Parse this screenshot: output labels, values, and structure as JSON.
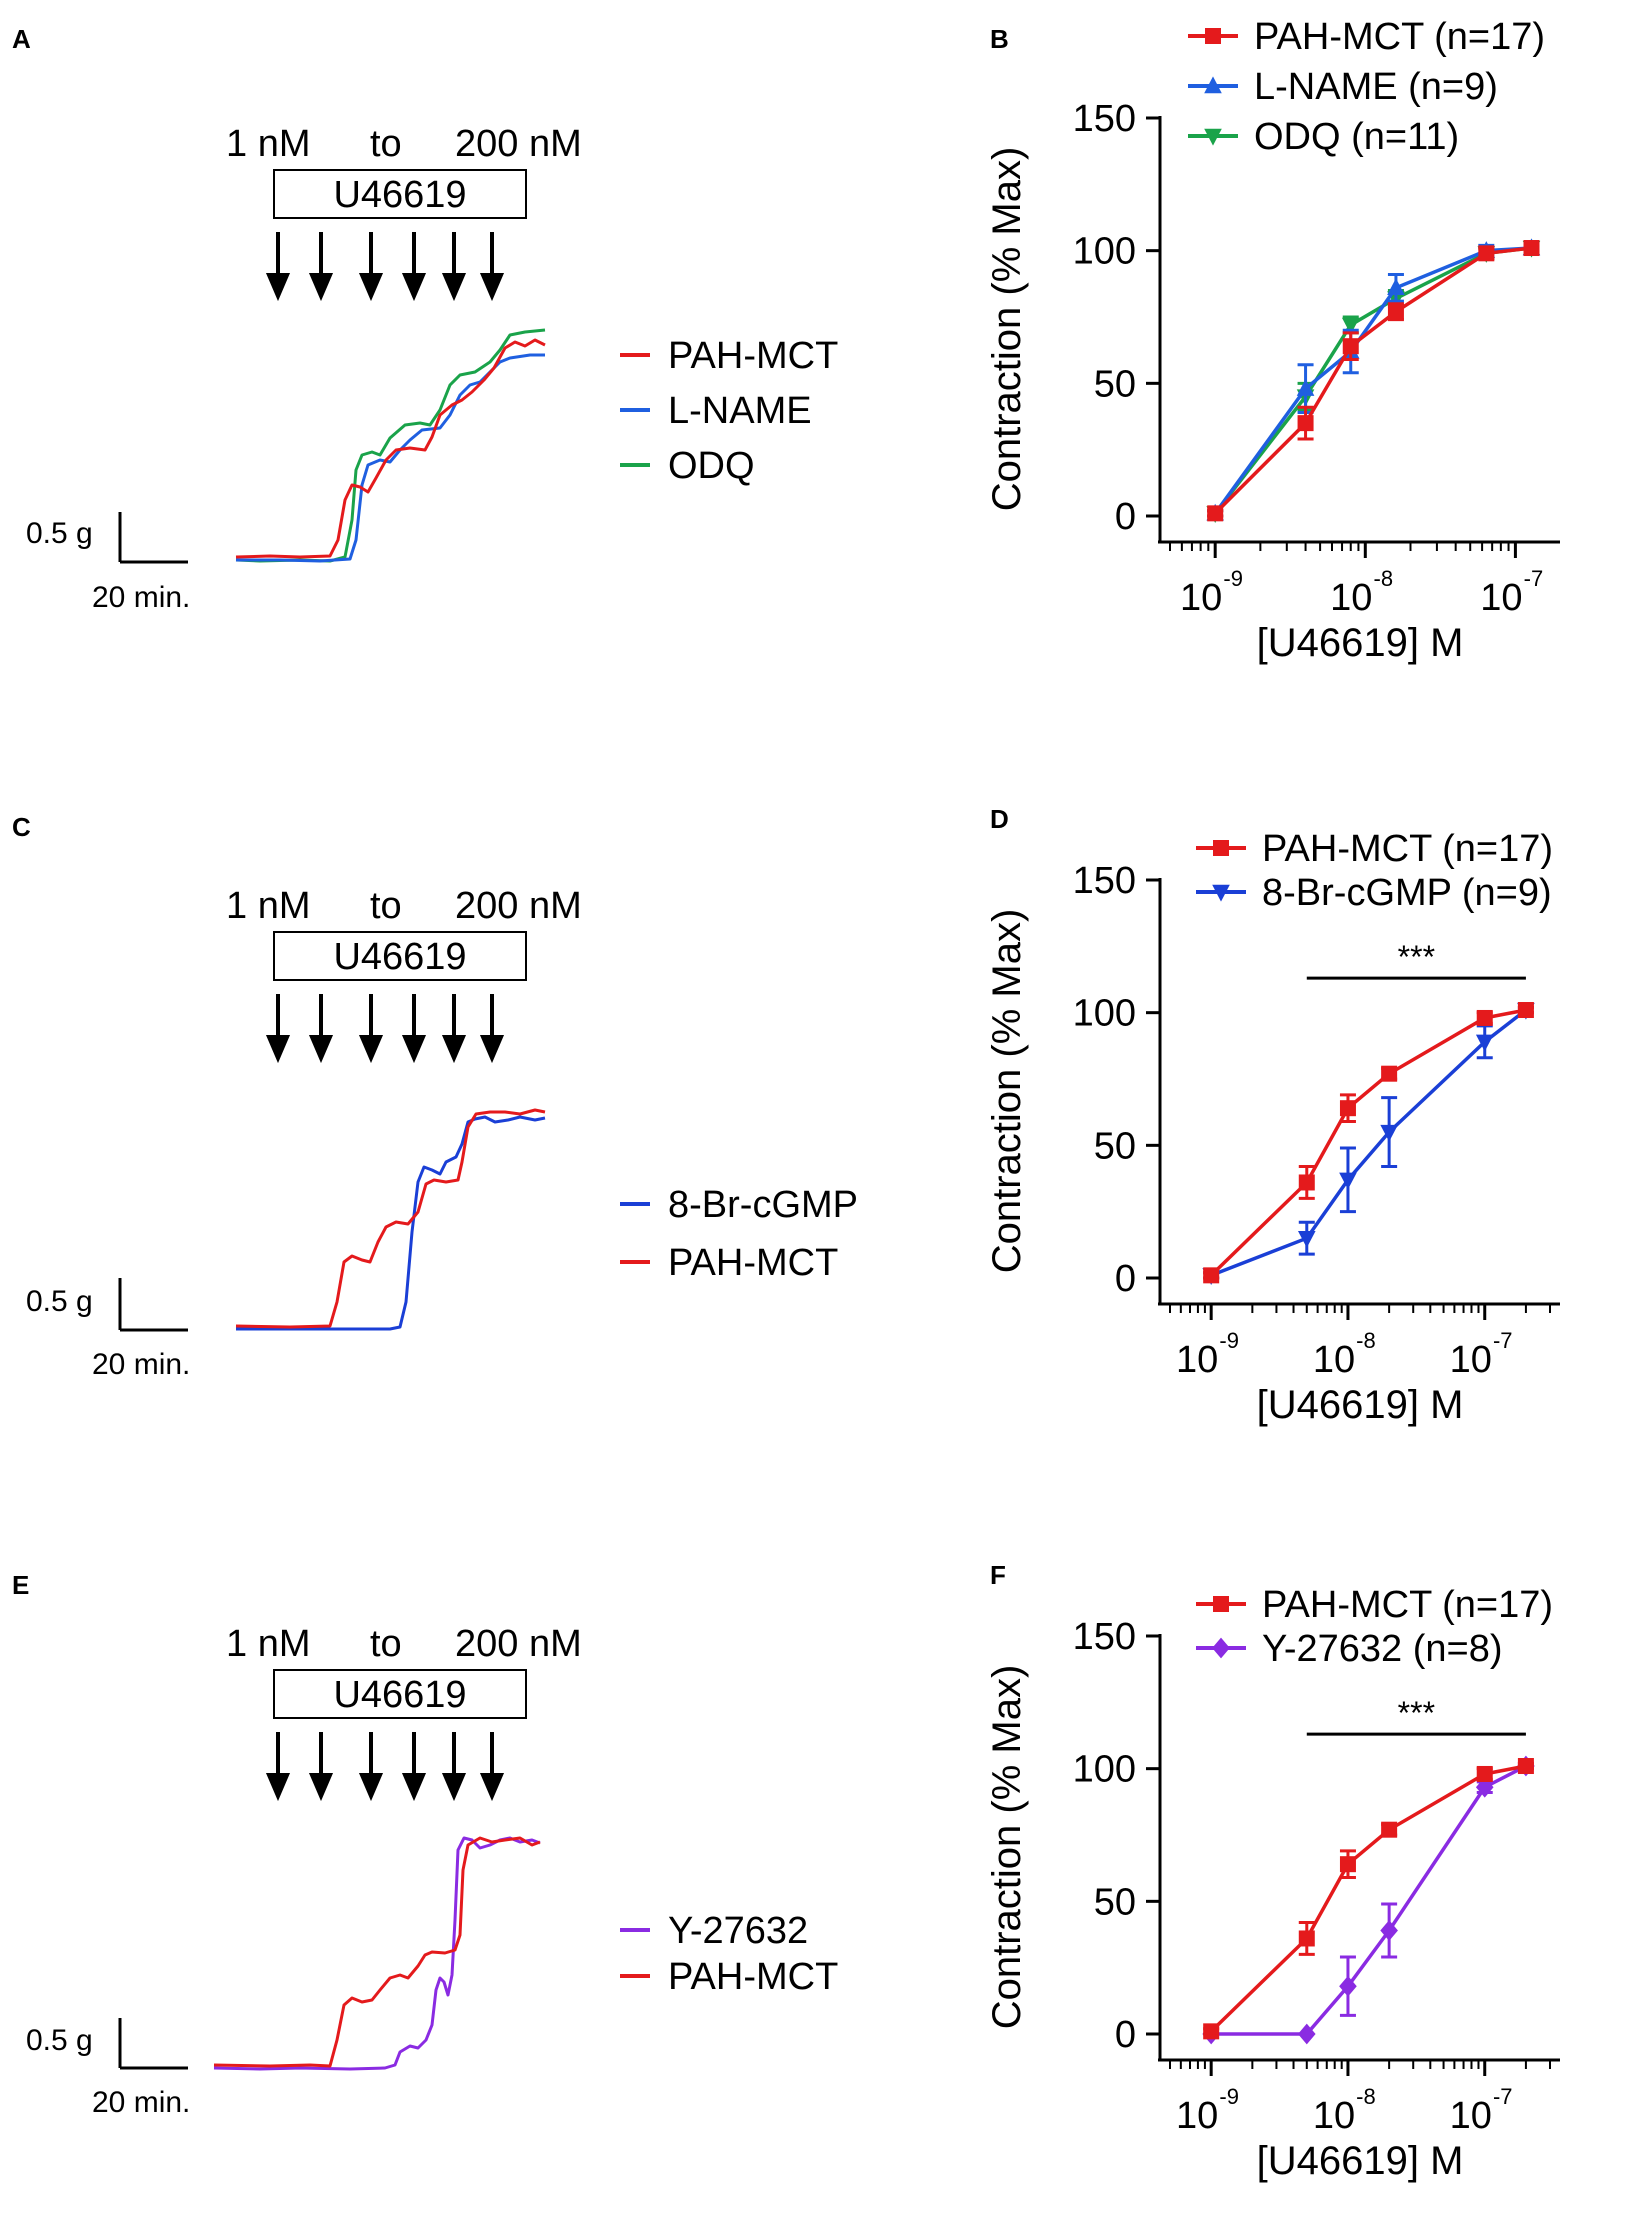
{
  "colors": {
    "pah_mct": "#e41a1c",
    "l_name": "#1f5fe0",
    "odq": "#1aa34a",
    "br_cgmp": "#1a3fd6",
    "y27632": "#8a2be2",
    "black": "#000000"
  },
  "trace_panels": [
    {
      "label": "A",
      "dose_start": "1 nM",
      "dose_to": "to",
      "dose_end": "200 nM",
      "drug": "U46619",
      "scale_y": "0.5 g",
      "scale_x": "20 min.",
      "legend": [
        {
          "name": "PAH-MCT",
          "color": "#e41a1c"
        },
        {
          "name": "L-NAME",
          "color": "#1f5fe0"
        },
        {
          "name": "ODQ",
          "color": "#1aa34a"
        }
      ]
    },
    {
      "label": "C",
      "dose_start": "1 nM",
      "dose_to": "to",
      "dose_end": "200 nM",
      "drug": "U46619",
      "scale_y": "0.5 g",
      "scale_x": "20 min.",
      "legend": [
        {
          "name": "8-Br-cGMP",
          "color": "#1a3fd6"
        },
        {
          "name": "PAH-MCT",
          "color": "#e41a1c"
        }
      ]
    },
    {
      "label": "E",
      "dose_start": "1 nM",
      "dose_to": "to",
      "dose_end": "200 nM",
      "drug": "U46619",
      "scale_y": "0.5 g",
      "scale_x": "20 min.",
      "legend": [
        {
          "name": "Y-27632",
          "color": "#8a2be2"
        },
        {
          "name": "PAH-MCT",
          "color": "#e41a1c"
        }
      ]
    }
  ],
  "chart_data": [
    {
      "label": "B",
      "type": "line",
      "xscale": "log",
      "xlabel": "[U46619] M",
      "ylabel": "Contraction (% Max)",
      "ylim": [
        0,
        150
      ],
      "yticks": [
        0,
        50,
        100,
        150
      ],
      "xlim": [
        5e-10,
        1.7e-07
      ],
      "xtick_labels": [
        {
          "base": "10",
          "exp": "-9",
          "value": 1e-09
        },
        {
          "base": "10",
          "exp": "-8",
          "value": 1e-08
        },
        {
          "base": "10",
          "exp": "-7",
          "value": 1e-07
        }
      ],
      "significance": "",
      "series": [
        {
          "name": "PAH-MCT (n=17)",
          "color": "#e41a1c",
          "marker": "square",
          "x": [
            1e-09,
            4e-09,
            8e-09,
            1.6e-08,
            6.4e-08,
            1.28e-07
          ],
          "y": [
            1,
            35,
            64,
            77,
            99,
            101
          ],
          "err": [
            1,
            6,
            5,
            3,
            2,
            1
          ]
        },
        {
          "name": "L-NAME (n=9)",
          "color": "#1f5fe0",
          "marker": "triangle-up",
          "x": [
            1e-09,
            4e-09,
            8e-09,
            1.6e-08,
            6.4e-08,
            1.28e-07
          ],
          "y": [
            1,
            48,
            62,
            86,
            100,
            101
          ],
          "err": [
            1,
            9,
            8,
            5,
            2,
            1
          ]
        },
        {
          "name": "ODQ (n=11)",
          "color": "#1aa34a",
          "marker": "triangle-down",
          "x": [
            1e-09,
            4e-09,
            8e-09,
            1.6e-08,
            6.4e-08,
            1.28e-07
          ],
          "y": [
            1,
            45,
            72,
            82,
            99,
            101
          ],
          "err": [
            1,
            5,
            3,
            3,
            2,
            1
          ]
        }
      ]
    },
    {
      "label": "D",
      "type": "line",
      "xscale": "log",
      "xlabel": "[U46619] M",
      "ylabel": "Contraction (% Max)",
      "ylim": [
        0,
        150
      ],
      "yticks": [
        0,
        50,
        100,
        150
      ],
      "xlim": [
        5e-10,
        3e-07
      ],
      "xtick_labels": [
        {
          "base": "10",
          "exp": "-9",
          "value": 1e-09
        },
        {
          "base": "10",
          "exp": "-8",
          "value": 1e-08
        },
        {
          "base": "10",
          "exp": "-7",
          "value": 1e-07
        }
      ],
      "significance": "***",
      "significance_range": [
        5e-09,
        2e-07
      ],
      "significance_y": 113,
      "series": [
        {
          "name": "PAH-MCT (n=17)",
          "color": "#e41a1c",
          "marker": "square",
          "x": [
            1e-09,
            5e-09,
            1e-08,
            2e-08,
            1e-07,
            2e-07
          ],
          "y": [
            1,
            36,
            64,
            77,
            98,
            101
          ],
          "err": [
            1,
            6,
            5,
            2,
            2,
            1
          ]
        },
        {
          "name": "8-Br-cGMP (n=9)",
          "color": "#1a3fd6",
          "marker": "triangle-down",
          "x": [
            1e-09,
            5e-09,
            1e-08,
            2e-08,
            1e-07,
            2e-07
          ],
          "y": [
            1,
            15,
            37,
            55,
            89,
            101
          ],
          "err": [
            1,
            6,
            12,
            13,
            6,
            1
          ]
        }
      ]
    },
    {
      "label": "F",
      "type": "line",
      "xscale": "log",
      "xlabel": "[U46619] M",
      "ylabel": "Contraction (% Max)",
      "ylim": [
        0,
        150
      ],
      "yticks": [
        0,
        50,
        100,
        150
      ],
      "xlim": [
        5e-10,
        3e-07
      ],
      "xtick_labels": [
        {
          "base": "10",
          "exp": "-9",
          "value": 1e-09
        },
        {
          "base": "10",
          "exp": "-8",
          "value": 1e-08
        },
        {
          "base": "10",
          "exp": "-7",
          "value": 1e-07
        }
      ],
      "significance": "***",
      "significance_range": [
        5e-09,
        2e-07
      ],
      "significance_y": 113,
      "series": [
        {
          "name": "PAH-MCT (n=17)",
          "color": "#e41a1c",
          "marker": "square",
          "x": [
            1e-09,
            5e-09,
            1e-08,
            2e-08,
            1e-07,
            2e-07
          ],
          "y": [
            1,
            36,
            64,
            77,
            98,
            101
          ],
          "err": [
            1,
            6,
            5,
            2,
            2,
            1
          ]
        },
        {
          "name": "Y-27632 (n=8)",
          "color": "#8a2be2",
          "marker": "diamond",
          "x": [
            1e-09,
            5e-09,
            1e-08,
            2e-08,
            1e-07,
            2e-07
          ],
          "y": [
            0,
            0,
            18,
            39,
            93,
            101
          ],
          "err": [
            0,
            0,
            11,
            10,
            2,
            1
          ]
        }
      ]
    }
  ]
}
